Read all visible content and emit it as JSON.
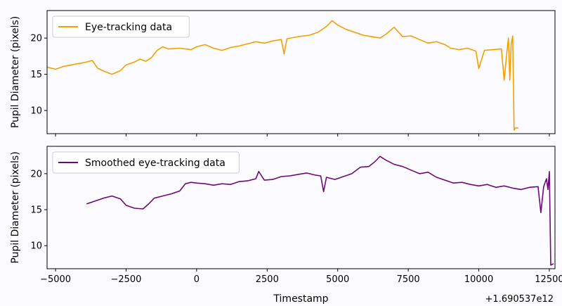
{
  "chart_data": [
    {
      "type": "line",
      "xlabel": "",
      "ylabel": "Pupil Diameter (pixels)",
      "xlim": [
        -5300,
        12700
      ],
      "ylim": [
        6.8,
        23.8
      ],
      "yticks": [
        10,
        15,
        20
      ],
      "xticks": [
        -5000,
        -2500,
        0,
        2500,
        5000,
        7500,
        10000,
        12500
      ],
      "show_xtick_labels": false,
      "legend_position": "upper-left",
      "series": [
        {
          "name": "Eye-tracking data",
          "color": "#f5a000",
          "points": [
            [
              -5300,
              16.0
            ],
            [
              -5000,
              15.7
            ],
            [
              -4700,
              16.1
            ],
            [
              -4300,
              16.4
            ],
            [
              -4000,
              16.6
            ],
            [
              -3700,
              16.9
            ],
            [
              -3500,
              15.8
            ],
            [
              -3200,
              15.3
            ],
            [
              -3000,
              15.0
            ],
            [
              -2700,
              15.5
            ],
            [
              -2500,
              16.3
            ],
            [
              -2200,
              16.7
            ],
            [
              -2000,
              17.1
            ],
            [
              -1800,
              16.8
            ],
            [
              -1600,
              17.3
            ],
            [
              -1400,
              18.3
            ],
            [
              -1200,
              18.8
            ],
            [
              -1000,
              18.5
            ],
            [
              -600,
              18.6
            ],
            [
              -200,
              18.4
            ],
            [
              0,
              18.8
            ],
            [
              300,
              19.1
            ],
            [
              600,
              18.6
            ],
            [
              900,
              18.3
            ],
            [
              1200,
              18.7
            ],
            [
              1500,
              18.9
            ],
            [
              1800,
              19.2
            ],
            [
              2100,
              19.5
            ],
            [
              2400,
              19.3
            ],
            [
              2700,
              19.6
            ],
            [
              3000,
              19.8
            ],
            [
              3100,
              17.8
            ],
            [
              3200,
              19.9
            ],
            [
              3600,
              20.2
            ],
            [
              4000,
              20.4
            ],
            [
              4300,
              20.8
            ],
            [
              4600,
              21.6
            ],
            [
              4800,
              22.4
            ],
            [
              5000,
              21.8
            ],
            [
              5300,
              21.2
            ],
            [
              5600,
              20.8
            ],
            [
              5900,
              20.4
            ],
            [
              6200,
              20.2
            ],
            [
              6500,
              20.0
            ],
            [
              6700,
              20.5
            ],
            [
              7000,
              21.5
            ],
            [
              7300,
              20.2
            ],
            [
              7600,
              20.3
            ],
            [
              7900,
              19.8
            ],
            [
              8200,
              19.3
            ],
            [
              8500,
              19.5
            ],
            [
              8800,
              19.1
            ],
            [
              9000,
              18.6
            ],
            [
              9300,
              18.4
            ],
            [
              9600,
              18.6
            ],
            [
              9900,
              18.2
            ],
            [
              10000,
              15.8
            ],
            [
              10200,
              18.3
            ],
            [
              10500,
              18.4
            ],
            [
              10800,
              18.5
            ],
            [
              10900,
              14.2
            ],
            [
              11000,
              18.2
            ],
            [
              11050,
              20.0
            ],
            [
              11100,
              14.2
            ],
            [
              11150,
              19.2
            ],
            [
              11200,
              20.3
            ],
            [
              11250,
              7.3
            ],
            [
              11300,
              7.6
            ],
            [
              11400,
              7.6
            ]
          ]
        }
      ]
    },
    {
      "type": "line",
      "xlabel": "Timestamp",
      "ylabel": "Pupil Diameter (pixels)",
      "xlim": [
        -5300,
        12700
      ],
      "ylim": [
        6.8,
        23.8
      ],
      "yticks": [
        10,
        15,
        20
      ],
      "xticks": [
        -5000,
        -2500,
        0,
        2500,
        5000,
        7500,
        10000,
        12500
      ],
      "xtick_labels": [
        "−5000",
        "−2500",
        "0",
        "2500",
        "5000",
        "7500",
        "10000",
        "12500"
      ],
      "offset_text": "+1.690537e12",
      "show_xtick_labels": true,
      "legend_position": "upper-left",
      "series": [
        {
          "name": "Smoothed eye-tracking data",
          "color": "#6e0a78",
          "points": [
            [
              -3900,
              15.8
            ],
            [
              -3600,
              16.2
            ],
            [
              -3300,
              16.6
            ],
            [
              -3000,
              16.9
            ],
            [
              -2700,
              16.5
            ],
            [
              -2500,
              15.6
            ],
            [
              -2200,
              15.2
            ],
            [
              -1900,
              15.1
            ],
            [
              -1700,
              15.8
            ],
            [
              -1500,
              16.6
            ],
            [
              -1200,
              16.9
            ],
            [
              -900,
              17.2
            ],
            [
              -600,
              17.6
            ],
            [
              -400,
              18.6
            ],
            [
              -200,
              18.8
            ],
            [
              0,
              18.7
            ],
            [
              300,
              18.6
            ],
            [
              600,
              18.4
            ],
            [
              900,
              18.6
            ],
            [
              1200,
              18.5
            ],
            [
              1500,
              18.9
            ],
            [
              1800,
              19.0
            ],
            [
              2100,
              19.3
            ],
            [
              2200,
              20.3
            ],
            [
              2400,
              19.1
            ],
            [
              2700,
              19.2
            ],
            [
              3000,
              19.6
            ],
            [
              3300,
              19.7
            ],
            [
              3600,
              19.9
            ],
            [
              3900,
              20.1
            ],
            [
              4200,
              19.8
            ],
            [
              4400,
              19.7
            ],
            [
              4500,
              17.5
            ],
            [
              4600,
              19.5
            ],
            [
              4900,
              19.2
            ],
            [
              5200,
              19.6
            ],
            [
              5500,
              20.0
            ],
            [
              5800,
              20.9
            ],
            [
              6100,
              21.0
            ],
            [
              6300,
              21.6
            ],
            [
              6500,
              22.4
            ],
            [
              6700,
              21.9
            ],
            [
              7000,
              21.3
            ],
            [
              7300,
              21.0
            ],
            [
              7600,
              20.5
            ],
            [
              7900,
              20.0
            ],
            [
              8200,
              20.2
            ],
            [
              8500,
              19.5
            ],
            [
              8800,
              19.1
            ],
            [
              9100,
              18.7
            ],
            [
              9400,
              18.8
            ],
            [
              9700,
              18.5
            ],
            [
              10000,
              18.3
            ],
            [
              10300,
              18.5
            ],
            [
              10600,
              18.1
            ],
            [
              10900,
              18.3
            ],
            [
              11200,
              18.0
            ],
            [
              11500,
              17.8
            ],
            [
              11800,
              18.1
            ],
            [
              12100,
              18.2
            ],
            [
              12200,
              14.6
            ],
            [
              12300,
              18.2
            ],
            [
              12400,
              19.3
            ],
            [
              12450,
              17.8
            ],
            [
              12500,
              20.3
            ],
            [
              12550,
              7.3
            ],
            [
              12650,
              7.5
            ]
          ]
        }
      ]
    }
  ]
}
